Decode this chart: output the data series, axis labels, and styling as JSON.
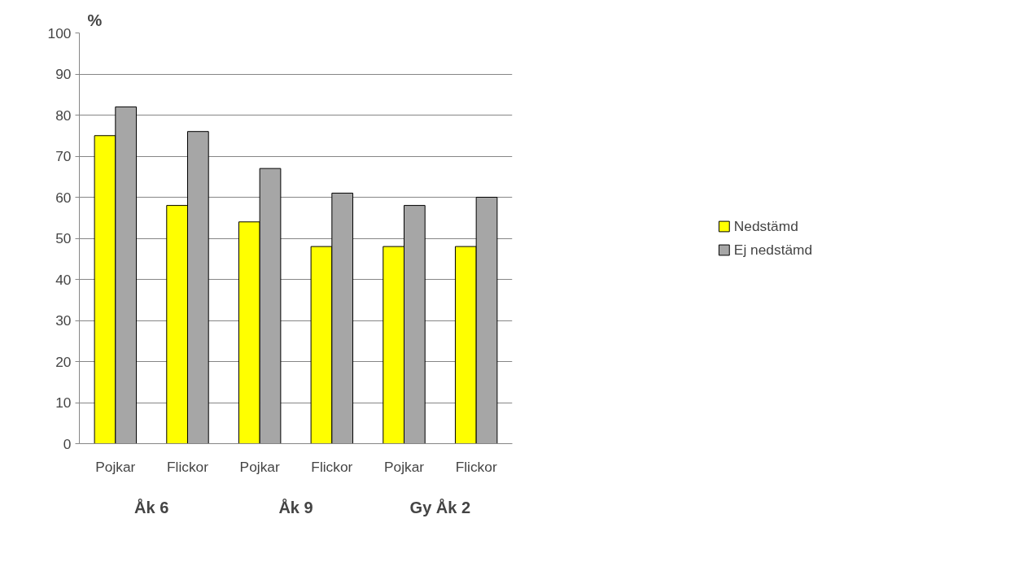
{
  "chart_data": {
    "type": "bar",
    "ylabel": "%",
    "categories": [
      "Pojkar",
      "Flickor",
      "Pojkar",
      "Flickor",
      "Pojkar",
      "Flickor"
    ],
    "series": [
      {
        "name": "Nedstämd",
        "color": "#ffff00",
        "values": [
          75,
          58,
          54,
          48,
          48,
          48
        ]
      },
      {
        "name": "Ej nedstämd",
        "color": "#a6a6a6",
        "values": [
          82,
          76,
          67,
          61,
          58,
          60
        ]
      }
    ],
    "ylim": [
      0,
      100
    ],
    "yticks": [
      0,
      10,
      20,
      30,
      40,
      50,
      60,
      70,
      80,
      90,
      100
    ],
    "grid": "y",
    "legend": "right",
    "annotations": [
      "Åk 6",
      "Åk 9",
      "Gy Åk 2"
    ]
  }
}
